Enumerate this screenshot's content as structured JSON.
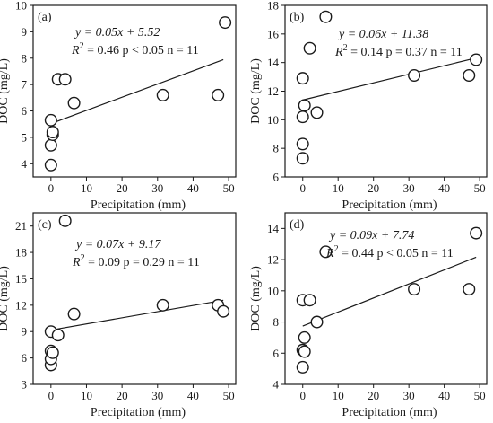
{
  "chart_data": [
    {
      "type": "scatter",
      "panel_label": "(a)",
      "xlabel": "Precipitation (mm)",
      "ylabel": "DOC (mg/L)",
      "xlim": [
        -5,
        52
      ],
      "ylim": [
        3.5,
        10
      ],
      "xticks": [
        0,
        10,
        20,
        30,
        40,
        50
      ],
      "yticks": [
        4,
        5,
        6,
        7,
        8,
        9,
        10
      ],
      "equation": {
        "line1": "y = 0.05x + 5.52",
        "r2_label": "R",
        "r2_sup": "2",
        "r2_rest": " = 0.46 p < 0.05 n = 11"
      },
      "fit": {
        "slope": 0.05,
        "intercept": 5.52,
        "x_range": [
          0,
          48.5
        ]
      },
      "points": [
        {
          "x": 0,
          "y": 3.95
        },
        {
          "x": 0,
          "y": 4.7
        },
        {
          "x": 0.5,
          "y": 5.1
        },
        {
          "x": 0.5,
          "y": 5.2
        },
        {
          "x": 0,
          "y": 5.65
        },
        {
          "x": 2,
          "y": 7.2
        },
        {
          "x": 4,
          "y": 7.2
        },
        {
          "x": 6.5,
          "y": 6.3
        },
        {
          "x": 31.5,
          "y": 6.6
        },
        {
          "x": 47,
          "y": 6.6
        },
        {
          "x": 49,
          "y": 9.35
        }
      ]
    },
    {
      "type": "scatter",
      "panel_label": "(b)",
      "xlabel": "Precipitation (mm)",
      "ylabel": "DOC (mg/L)",
      "xlim": [
        -5,
        52
      ],
      "ylim": [
        6,
        18
      ],
      "xticks": [
        0,
        10,
        20,
        30,
        40,
        50
      ],
      "yticks": [
        6,
        8,
        10,
        12,
        14,
        16,
        18
      ],
      "equation": {
        "line1": "y = 0.06x + 11.38",
        "r2_label": "R",
        "r2_sup": "2",
        "r2_rest": " = 0.14 p = 0.37 n = 11"
      },
      "fit": {
        "slope": 0.06,
        "intercept": 11.38,
        "x_range": [
          0,
          49
        ]
      },
      "points": [
        {
          "x": 0,
          "y": 7.3
        },
        {
          "x": 0,
          "y": 8.3
        },
        {
          "x": 0,
          "y": 10.2
        },
        {
          "x": 0.5,
          "y": 11.0
        },
        {
          "x": 0,
          "y": 12.9
        },
        {
          "x": 2,
          "y": 15.0
        },
        {
          "x": 4,
          "y": 10.5
        },
        {
          "x": 6.5,
          "y": 17.2
        },
        {
          "x": 31.5,
          "y": 13.1
        },
        {
          "x": 47,
          "y": 13.1
        },
        {
          "x": 49,
          "y": 14.2
        }
      ]
    },
    {
      "type": "scatter",
      "panel_label": "(c)",
      "xlabel": "Precipitation (mm)",
      "ylabel": "DOC (mg/L)",
      "xlim": [
        -5,
        52
      ],
      "ylim": [
        3,
        22.5
      ],
      "xticks": [
        0,
        10,
        20,
        30,
        40,
        50
      ],
      "yticks": [
        3,
        6,
        9,
        12,
        15,
        18,
        21
      ],
      "equation": {
        "line1": "y = 0.07x + 9.17",
        "r2_label": "R",
        "r2_sup": "2",
        "r2_rest": " = 0.09 p = 0.29 n = 11"
      },
      "fit": {
        "slope": 0.07,
        "intercept": 9.17,
        "x_range": [
          0,
          48.5
        ]
      },
      "points": [
        {
          "x": 0,
          "y": 5.2
        },
        {
          "x": 0,
          "y": 5.9
        },
        {
          "x": 0,
          "y": 6.8
        },
        {
          "x": 0.5,
          "y": 6.6
        },
        {
          "x": 0,
          "y": 9.0
        },
        {
          "x": 2,
          "y": 8.6
        },
        {
          "x": 4,
          "y": 21.6
        },
        {
          "x": 6.5,
          "y": 11.0
        },
        {
          "x": 31.5,
          "y": 12.0
        },
        {
          "x": 47,
          "y": 12.0
        },
        {
          "x": 48.5,
          "y": 11.3
        }
      ]
    },
    {
      "type": "scatter",
      "panel_label": "(d)",
      "xlabel": "Precipitation (mm)",
      "ylabel": "DOC (mg/L)",
      "xlim": [
        -5,
        52
      ],
      "ylim": [
        4,
        15
      ],
      "xticks": [
        0,
        10,
        20,
        30,
        40,
        50
      ],
      "yticks": [
        4,
        6,
        8,
        10,
        12,
        14
      ],
      "equation": {
        "line1": "y = 0.09x + 7.74",
        "r2_label": "R",
        "r2_sup": "2",
        "r2_rest": " = 0.44 p < 0.05 n = 11"
      },
      "fit": {
        "slope": 0.09,
        "intercept": 7.74,
        "x_range": [
          0,
          49
        ]
      },
      "points": [
        {
          "x": 0,
          "y": 5.1
        },
        {
          "x": 0,
          "y": 6.2
        },
        {
          "x": 0.5,
          "y": 6.1
        },
        {
          "x": 0.5,
          "y": 7.0
        },
        {
          "x": 0,
          "y": 9.4
        },
        {
          "x": 2,
          "y": 9.4
        },
        {
          "x": 4,
          "y": 8.0
        },
        {
          "x": 6.5,
          "y": 12.5
        },
        {
          "x": 31.5,
          "y": 10.1
        },
        {
          "x": 47,
          "y": 10.1
        },
        {
          "x": 49,
          "y": 13.7
        }
      ]
    }
  ]
}
